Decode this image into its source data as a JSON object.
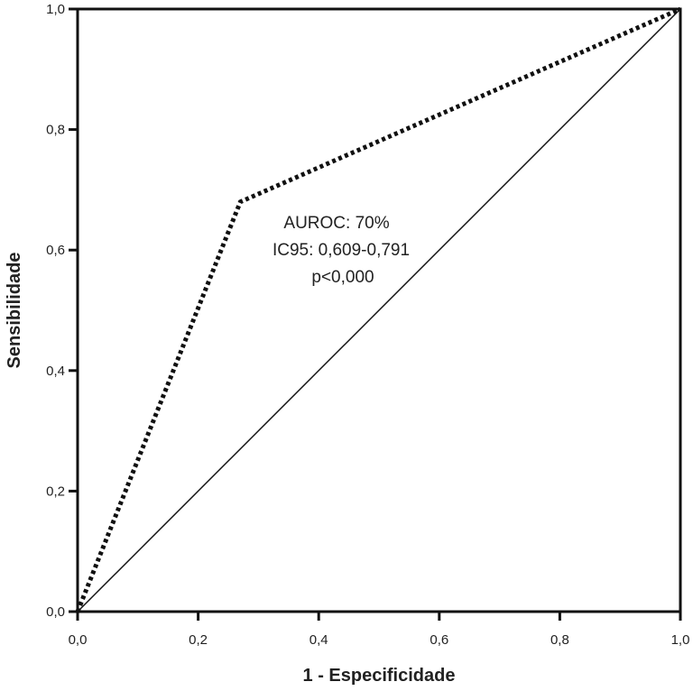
{
  "chart_data": {
    "type": "line",
    "title": "",
    "xlabel": "1 - Especificidade",
    "ylabel": "Sensibilidade",
    "xlim": [
      0,
      1
    ],
    "ylim": [
      0,
      1
    ],
    "xticks": [
      "0,0",
      "0,2",
      "0,4",
      "0,6",
      "0,8",
      "1,0"
    ],
    "yticks": [
      "0,0",
      "0,2",
      "0,4",
      "0,6",
      "0,8",
      "1,0"
    ],
    "tick_values": [
      0,
      0.2,
      0.4,
      0.6,
      0.8,
      1.0
    ],
    "grid": false,
    "series": [
      {
        "name": "ROC",
        "style": "dotted",
        "x": [
          0,
          0.27,
          1.0
        ],
        "y": [
          0,
          0.68,
          1.0
        ]
      },
      {
        "name": "Reference",
        "style": "solid",
        "x": [
          0,
          1.0
        ],
        "y": [
          0,
          1.0
        ]
      }
    ],
    "annotations": [
      "AUROC: 70%",
      "IC95: 0,609-0,791",
      "p<0,000"
    ]
  }
}
